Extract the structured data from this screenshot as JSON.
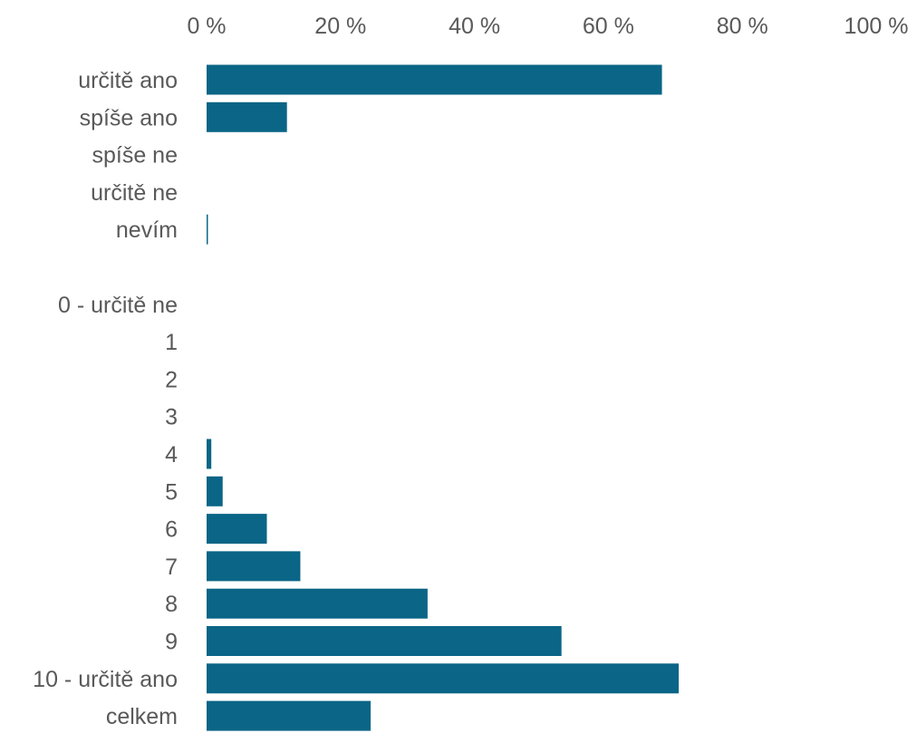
{
  "chart_data": {
    "type": "bar",
    "orientation": "horizontal",
    "bar_color": "#0a6586",
    "x_ticks": [
      "0 %",
      "20 %",
      "40 %",
      "60 %",
      "80 %",
      "100 %"
    ],
    "xlim": [
      0,
      100
    ],
    "x_axis_position": "top",
    "grid": false,
    "legend": "none",
    "categories": [
      "určitě ano",
      "spíše ano",
      "spíše ne",
      "určitě ne",
      "nevím",
      "",
      "0 - určitě ne",
      "1",
      "2",
      "3",
      "4",
      "5",
      "6",
      "7",
      "8",
      "9",
      "10 - určitě ano",
      "celkem"
    ],
    "values": [
      68,
      12,
      0,
      0,
      0.2,
      0,
      0,
      0,
      0,
      0,
      0.7,
      2.4,
      9,
      14,
      33,
      53,
      70.5,
      24.5
    ]
  }
}
